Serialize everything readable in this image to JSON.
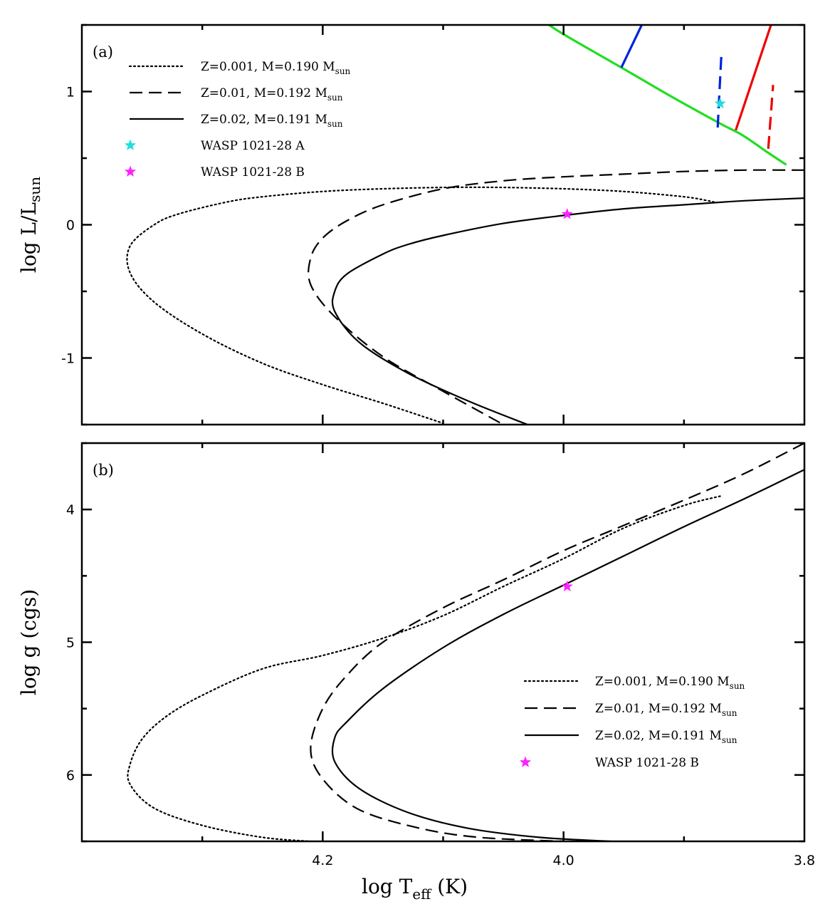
{
  "chart_data": [
    {
      "panel": "a",
      "type": "line",
      "panel_label": "(a)",
      "ylabel_main": "log L/L",
      "ylabel_sub": "sun",
      "xlim": [
        4.4,
        3.8
      ],
      "ylim": [
        -1.5,
        1.5
      ],
      "yticks": [
        -1,
        0,
        1
      ],
      "ytick_labels": [
        "-1",
        "0",
        "1"
      ],
      "xticks": [
        4.2,
        4.0
      ],
      "series": [
        {
          "name": "Z=0.001, M=0.190 Msun",
          "style": "dotted",
          "color": "#000000",
          "x": [
            3.875,
            3.88,
            3.9,
            3.95,
            4.0,
            4.05,
            4.1,
            4.15,
            4.2,
            4.25,
            4.28,
            4.32,
            4.34,
            4.36,
            4.36,
            4.34,
            4.3,
            4.25,
            4.2,
            4.15,
            4.1
          ],
          "y": [
            0.17,
            0.18,
            0.21,
            0.25,
            0.27,
            0.28,
            0.28,
            0.27,
            0.25,
            0.21,
            0.17,
            0.08,
            0.0,
            -0.16,
            -0.36,
            -0.58,
            -0.82,
            -1.04,
            -1.2,
            -1.34,
            -1.49
          ]
        },
        {
          "name": "Z=0.01, M=0.192 Msun",
          "style": "dashed",
          "color": "#000000",
          "x": [
            3.8,
            3.85,
            3.9,
            3.95,
            4.0,
            4.05,
            4.1,
            4.15,
            4.18,
            4.2,
            4.21,
            4.21,
            4.19,
            4.15,
            4.1,
            4.05
          ],
          "y": [
            0.41,
            0.41,
            0.4,
            0.38,
            0.36,
            0.33,
            0.27,
            0.15,
            0.03,
            -0.1,
            -0.25,
            -0.45,
            -0.69,
            -0.99,
            -1.25,
            -1.5
          ]
        },
        {
          "name": "Z=0.02, M=0.191 Msun",
          "style": "solid",
          "color": "#000000",
          "x": [
            3.8,
            3.85,
            3.9,
            3.95,
            4.0,
            4.05,
            4.1,
            4.13,
            4.15,
            4.18,
            4.19,
            4.19,
            4.17,
            4.13,
            4.08,
            4.03
          ],
          "y": [
            0.2,
            0.18,
            0.15,
            0.12,
            0.07,
            0.01,
            -0.08,
            -0.15,
            -0.22,
            -0.37,
            -0.5,
            -0.65,
            -0.88,
            -1.11,
            -1.32,
            -1.5
          ]
        },
        {
          "name": "boundary",
          "style": "solid",
          "color": "#22dd22",
          "x": [
            3.815,
            3.83,
            3.851,
            3.87,
            3.91,
            3.95,
            4.0,
            4.015
          ],
          "y": [
            0.45,
            0.54,
            0.67,
            0.76,
            0.96,
            1.17,
            1.43,
            1.52
          ]
        },
        {
          "name": "blue-solid",
          "style": "solid",
          "color": "#0022dd",
          "x": [
            3.952,
            3.934
          ],
          "y": [
            1.18,
            1.52
          ]
        },
        {
          "name": "blue-dashed",
          "style": "dashed",
          "color": "#0022dd",
          "x": [
            3.872,
            3.869
          ],
          "y": [
            0.73,
            1.27
          ]
        },
        {
          "name": "red-solid",
          "style": "solid",
          "color": "#ee0000",
          "x": [
            3.857,
            3.827
          ],
          "y": [
            0.71,
            1.52
          ]
        },
        {
          "name": "red-dashed",
          "style": "dashed",
          "color": "#ee0000",
          "x": [
            3.83,
            3.826
          ],
          "y": [
            0.57,
            1.05
          ]
        }
      ],
      "stars": [
        {
          "name": "WASP 1021-28 A",
          "x": 3.87,
          "y": 0.91,
          "color": "#22dddd"
        },
        {
          "name": "WASP 1021-28 B",
          "x": 3.997,
          "y": 0.08,
          "color": "#ff22ff"
        }
      ],
      "legend": [
        {
          "style": "dotted",
          "text": "Z=0.001, M=0.190  M",
          "sub": "sun"
        },
        {
          "style": "dashed",
          "text": "Z=0.01, M=0.192 M",
          "sub": "sun"
        },
        {
          "style": "solid",
          "text": "Z=0.02, M=0.191  M",
          "sub": "sun"
        },
        {
          "style": "star",
          "color": "#22dddd",
          "text": "WASP 1021-28 A",
          "sub": ""
        },
        {
          "style": "star",
          "color": "#ff22ff",
          "text": "WASP 1021-28 B",
          "sub": ""
        }
      ]
    },
    {
      "panel": "b",
      "type": "line",
      "panel_label": "(b)",
      "ylabel": "log g (cgs)",
      "xlabel_main": "log T",
      "xlabel_sub": "eff",
      "xlabel_unit": "(K)",
      "xlim": [
        4.4,
        3.8
      ],
      "ylim": [
        6.5,
        3.5
      ],
      "yticks": [
        4,
        5,
        6
      ],
      "ytick_labels": [
        "4",
        "5",
        "6"
      ],
      "xticks": [
        4.2,
        4.0,
        3.8
      ],
      "xtick_labels": [
        "4.2",
        "4.0",
        "3.8"
      ],
      "series": [
        {
          "name": "Z=0.001, M=0.190 Msun",
          "style": "dotted",
          "color": "#000000",
          "x": [
            3.87,
            3.9,
            3.95,
            4.0,
            4.05,
            4.1,
            4.15,
            4.2,
            4.25,
            4.3,
            4.33,
            4.35,
            4.36,
            4.36,
            4.34,
            4.3,
            4.25,
            4.21
          ],
          "y": [
            3.9,
            3.97,
            4.14,
            4.37,
            4.58,
            4.8,
            4.97,
            5.1,
            5.2,
            5.4,
            5.56,
            5.73,
            5.92,
            6.07,
            6.25,
            6.38,
            6.47,
            6.5
          ]
        },
        {
          "name": "Z=0.01, M=0.192 Msun",
          "style": "dashed",
          "color": "#000000",
          "x": [
            3.8,
            3.85,
            3.9,
            3.95,
            4.0,
            4.05,
            4.1,
            4.15,
            4.18,
            4.2,
            4.21,
            4.2,
            4.17,
            4.12,
            4.07,
            4.0
          ],
          "y": [
            3.5,
            3.73,
            3.93,
            4.12,
            4.31,
            4.53,
            4.74,
            5.0,
            5.25,
            5.5,
            5.8,
            6.03,
            6.26,
            6.4,
            6.47,
            6.5
          ]
        },
        {
          "name": "Z=0.02, M=0.191 Msun",
          "style": "solid",
          "color": "#000000",
          "x": [
            3.8,
            3.85,
            3.9,
            3.95,
            4.0,
            4.05,
            4.1,
            4.15,
            4.18,
            4.19,
            4.19,
            4.17,
            4.13,
            4.08,
            4.02,
            3.96
          ],
          "y": [
            3.7,
            3.92,
            4.13,
            4.35,
            4.57,
            4.79,
            5.04,
            5.35,
            5.6,
            5.72,
            5.9,
            6.1,
            6.28,
            6.4,
            6.47,
            6.5
          ]
        }
      ],
      "stars": [
        {
          "name": "WASP 1021-28 B",
          "x": 3.997,
          "y": 4.58,
          "color": "#ff22ff"
        }
      ],
      "legend": [
        {
          "style": "dotted",
          "text": "Z=0.001, M=0.190  M",
          "sub": "sun"
        },
        {
          "style": "dashed",
          "text": "Z=0.01, M=0.192 M",
          "sub": "sun"
        },
        {
          "style": "solid",
          "text": "Z=0.02, M=0.191  M",
          "sub": "sun"
        },
        {
          "style": "star",
          "color": "#ff22ff",
          "text": "WASP 1021-28 B",
          "sub": ""
        }
      ]
    }
  ]
}
